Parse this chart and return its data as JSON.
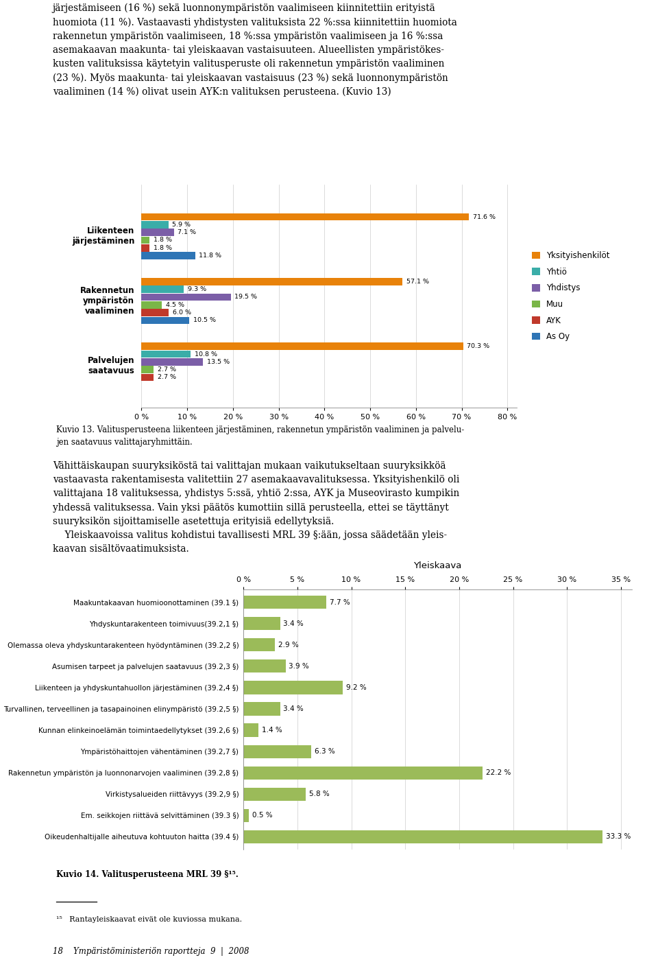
{
  "text_top": "järjestämiseen (16 %) sekä luonnonympäristön vaalimiseen kiinnitettiin erityistä\nhuomiota (11 %). Vastaavasti yhdistysten valituksista 22 %:ssa kiinnitettiin huomiota\nrakennetun ympäristön vaalimiseen, 18 %:ssa ympäristön vaalimiseen ja 16 %:ssa\nasemakaavan maakunta- tai yleiskaavan vastaisuuteen. Alueellisten ympäristökes-\nkusten valituksissa käytetyin valitusperuste oli rakennetun ympäristön vaaliminen\n(23 %). Myös maakunta- tai yleiskaavan vastaisuus (23 %) sekä luonnonympäristön\nvaaliminen (14 %) olivat usein AYK:n valituksen perusteena. (Kuvio 13)",
  "chart1": {
    "categories": [
      "Liikenteen\njärjestäminen",
      "Rakennetun\nympäristön\nvaaliminen",
      "Palvelujen\nsaatavuus"
    ],
    "series_labels": [
      "Yksityishenkilöt",
      "Yhtiö",
      "Yhdistys",
      "Muu",
      "AYK",
      "As Oy"
    ],
    "series_colors": [
      "#E8820A",
      "#3AADA8",
      "#7B5EA7",
      "#7AB648",
      "#C0392B",
      "#2E75B6"
    ],
    "data": {
      "Yksityishenkilöt": [
        71.6,
        57.1,
        70.3
      ],
      "Yhtiö": [
        5.9,
        9.3,
        10.8
      ],
      "Yhdistys": [
        7.1,
        19.5,
        13.5
      ],
      "Muu": [
        1.8,
        4.5,
        2.7
      ],
      "AYK": [
        1.8,
        6.0,
        2.7
      ],
      "As Oy": [
        11.8,
        10.5,
        0.0
      ]
    },
    "xlim": [
      0,
      80
    ],
    "xticks": [
      0,
      10,
      20,
      30,
      40,
      50,
      60,
      70,
      80
    ],
    "xtick_labels": [
      "0 %",
      "10 %",
      "20 %",
      "30 %",
      "40 %",
      "50 %",
      "60 %",
      "70 %",
      "80 %"
    ]
  },
  "caption1": "Kuvio 13. Valitusperusteena liikenteen järjestäminen, rakennetun ympäristön vaaliminen ja palvelu-\njen saatavuus valittajaryhmittäin.",
  "text_middle": "Vähittäiskaupan suuryksiköstä tai valittajan mukaan vaikutukseltaan suuryksikköä\nvastaavasta rakentamisesta valitettiin 27 asemakaavavalituksessa. Yksityishenkilö oli\nvalittajana 18 valituksessa, yhdistys 5:ssä, yhtiö 2:ssa, AYK ja Museovirasto kumpikin\nyhdessä valituksessa. Vain yksi päätös kumottiin sillä perusteella, ettei se täyttänyt\nsuuryksikön sijoittamiselle asetettuja erityisiä edellytyksiä.\n    Yleiskaavoissa valitus kohdistui tavallisesti MRL 39 §:ään, jossa säädetään yleis-\nkaavan sisältövaatimuksista.",
  "chart2": {
    "title": "Yleiskaava",
    "categories": [
      "Maakuntakaavan huomioonottaminen (39.1 §)",
      "Yhdyskuntarakenteen toimivuus(39.2,1 §)",
      "Olemassa oleva yhdyskuntarakenteen hyödyntäminen (39.2,2 §)",
      "Asumisen tarpeet ja palvelujen saatavuus (39.2,3 §)",
      "Liikenteen ja yhdyskuntahuollon järjestäminen (39.2,4 §)",
      "Turvallinen, terveellinen ja tasapainoinen elinympäristö (39.2,5 §)",
      "Kunnan elinkeinoelämän toimintaedellytykset (39.2,6 §)",
      "Ympäristöhaittojen vähentäminen (39.2,7 §)",
      "Rakennetun ympäristön ja luonnonarvojen vaaliminen (39.2,8 §)",
      "Virkistysalueiden riittävyys (39.2,9 §)",
      "Em. seikkojen riittävä selvittäminen (39.3 §)",
      "Oikeudenhaltijalle aiheutuva kohtuuton haitta (39.4 §)"
    ],
    "values": [
      7.7,
      3.4,
      2.9,
      3.9,
      9.2,
      3.4,
      1.4,
      6.3,
      22.2,
      5.8,
      0.5,
      33.3
    ],
    "bar_color": "#9BBB59",
    "xlim": [
      0,
      35
    ],
    "xticks": [
      0,
      5,
      10,
      15,
      20,
      25,
      30,
      35
    ],
    "xtick_labels": [
      "0 %",
      "5 %",
      "10 %",
      "15 %",
      "20 %",
      "25 %",
      "30 %",
      "35 %"
    ]
  },
  "caption2": "Kuvio 14. Valitusperusteena MRL 39 §¹⁵.",
  "footnote": "¹⁵   Rantayleiskaavat eivät ole kuviossa mukana.",
  "footer": "18    Ympäristöministeriön raportteja  9  |  2008",
  "background_color": "#FFFFFF"
}
